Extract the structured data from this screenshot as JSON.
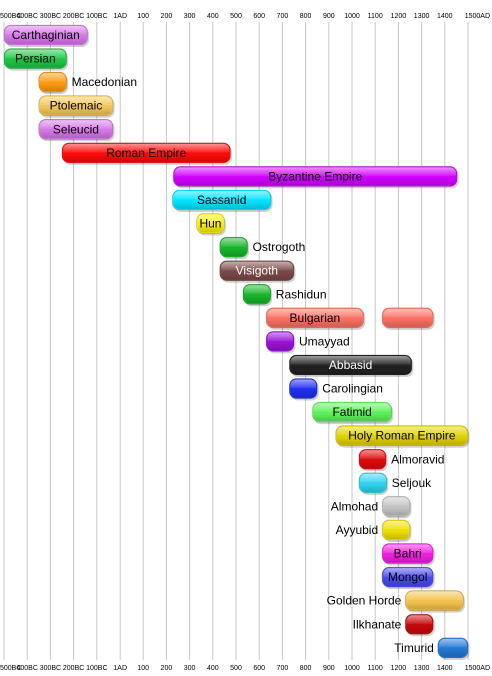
{
  "chart_data": {
    "type": "bar",
    "subtype": "timeline",
    "title": "",
    "xlabel": "",
    "ylabel": "",
    "xlim": [
      -500,
      1500
    ],
    "grid": true,
    "x_tick_values": [
      -500,
      -400,
      -300,
      -200,
      -100,
      1,
      100,
      200,
      300,
      400,
      500,
      600,
      700,
      800,
      900,
      1000,
      1100,
      1200,
      1300,
      1400,
      1500
    ],
    "x_tick_labels": [
      "500BC",
      "400BC",
      "300BC",
      "200BC",
      "100BC",
      "1AD",
      "100",
      "200",
      "300",
      "400",
      "500",
      "600",
      "700",
      "800",
      "900",
      "1000",
      "1100",
      "1200",
      "1300",
      "1400",
      "1500AD"
    ],
    "empires": [
      {
        "name": "Carthaginian",
        "start": -500,
        "end": -140,
        "color": "#d678e8",
        "text_color": "#000000",
        "label_position": "inside"
      },
      {
        "name": "Persian",
        "start": -500,
        "end": -230,
        "color": "#1ec745",
        "text_color": "#000000",
        "label_position": "inside"
      },
      {
        "name": "Macedonian",
        "start": -350,
        "end": -230,
        "color": "#ff9a10",
        "text_color": "#000000",
        "label_position": "right"
      },
      {
        "name": "Ptolemaic",
        "start": -350,
        "end": -30,
        "color": "#f3c85a",
        "text_color": "#000000",
        "label_position": "inside"
      },
      {
        "name": "Seleucid",
        "start": -350,
        "end": -30,
        "color": "#d678e8",
        "text_color": "#000000",
        "label_position": "inside"
      },
      {
        "name": "Roman Empire",
        "start": -250,
        "end": 476,
        "color": "#ff0a0a",
        "text_color": "#000000",
        "label_position": "inside"
      },
      {
        "name": "Byzantine Empire",
        "start": 230,
        "end": 1453,
        "color": "#d200ff",
        "text_color": "#000000",
        "label_position": "inside"
      },
      {
        "name": "Sassanid",
        "start": 226,
        "end": 651,
        "color": "#00e5ff",
        "text_color": "#000000",
        "label_position": "inside"
      },
      {
        "name": "Hun",
        "start": 330,
        "end": 450,
        "color": "#f7ee10",
        "text_color": "#000000",
        "label_position": "inside"
      },
      {
        "name": "Ostrogoth",
        "start": 430,
        "end": 550,
        "color": "#17b52a",
        "text_color": "#000000",
        "label_position": "right"
      },
      {
        "name": "Visigoth",
        "start": 430,
        "end": 750,
        "color": "#7a4a48",
        "text_color": "#ffffff",
        "label_position": "inside"
      },
      {
        "name": "Rashidun",
        "start": 530,
        "end": 650,
        "color": "#17b52a",
        "text_color": "#000000",
        "label_position": "right"
      },
      {
        "name": "Bulgarian",
        "start": 630,
        "end": 1050,
        "start2": 1130,
        "end2": 1350,
        "color": "#fc7163",
        "text_color": "#000000",
        "label_position": "inside"
      },
      {
        "name": "Umayyad",
        "start": 630,
        "end": 750,
        "color": "#9a12d8",
        "text_color": "#000000",
        "label_position": "right"
      },
      {
        "name": "Abbasid",
        "start": 730,
        "end": 1258,
        "color": "#222222",
        "text_color": "#ffffff",
        "label_position": "inside"
      },
      {
        "name": "Carolingian",
        "start": 730,
        "end": 850,
        "color": "#1f2ff0",
        "text_color": "#000000",
        "label_position": "right"
      },
      {
        "name": "Fatimid",
        "start": 830,
        "end": 1171,
        "color": "#5ef25a",
        "text_color": "#000000",
        "label_position": "inside"
      },
      {
        "name": "Holy Roman Empire",
        "start": 930,
        "end": 1500,
        "color": "#e3d300",
        "text_color": "#000000",
        "label_position": "inside"
      },
      {
        "name": "Almoravid",
        "start": 1030,
        "end": 1147,
        "color": "#e00a0a",
        "text_color": "#000000",
        "label_position": "right"
      },
      {
        "name": "Seljouk",
        "start": 1030,
        "end": 1150,
        "color": "#2ed4ee",
        "text_color": "#000000",
        "label_position": "right"
      },
      {
        "name": "Almohad",
        "start": 1130,
        "end": 1250,
        "color": "#c4c4c4",
        "text_color": "#000000",
        "label_position": "left"
      },
      {
        "name": "Ayyubid",
        "start": 1130,
        "end": 1250,
        "color": "#efe000",
        "text_color": "#000000",
        "label_position": "left"
      },
      {
        "name": "Bahri",
        "start": 1130,
        "end": 1350,
        "color": "#f21ee0",
        "text_color": "#000000",
        "label_position": "inside"
      },
      {
        "name": "Mongol",
        "start": 1130,
        "end": 1350,
        "color": "#4a4aee",
        "text_color": "#000000",
        "label_position": "inside"
      },
      {
        "name": "Golden Horde",
        "start": 1230,
        "end": 1480,
        "color": "#f3c34a",
        "text_color": "#000000",
        "label_position": "left"
      },
      {
        "name": "Ilkhanate",
        "start": 1230,
        "end": 1350,
        "color": "#c8080c",
        "text_color": "#000000",
        "label_position": "left"
      },
      {
        "name": "Timurid",
        "start": 1370,
        "end": 1500,
        "color": "#2378d4",
        "text_color": "#000000",
        "label_position": "left"
      }
    ]
  }
}
